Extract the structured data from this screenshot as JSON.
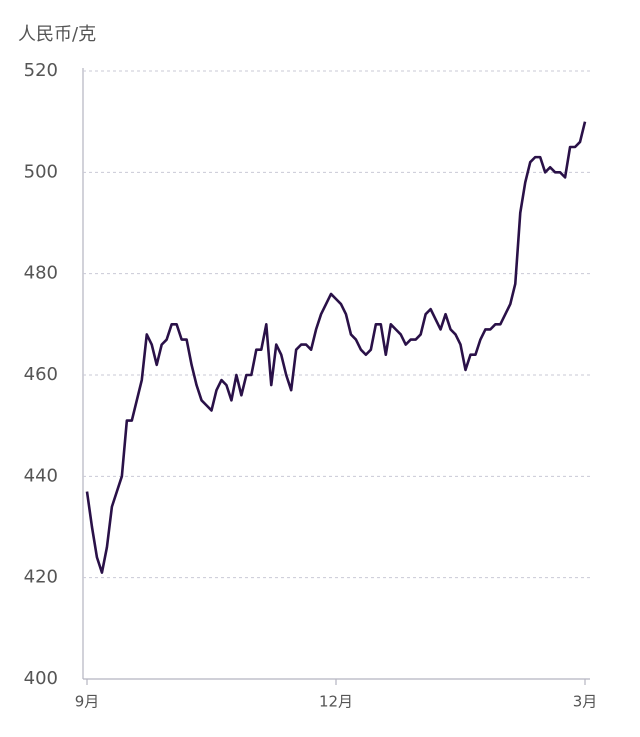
{
  "chart_data": {
    "type": "line",
    "y_label": "人民币/克",
    "categories": [
      "9月",
      null,
      null,
      null,
      null,
      null,
      null,
      null,
      null,
      null,
      null,
      null,
      null,
      null,
      null,
      null,
      null,
      null,
      null,
      null,
      null,
      null,
      null,
      null,
      null,
      null,
      null,
      null,
      null,
      null,
      null,
      null,
      null,
      null,
      null,
      null,
      null,
      null,
      null,
      null,
      null,
      null,
      null,
      null,
      null,
      null,
      null,
      null,
      null,
      null,
      "12月",
      null,
      null,
      null,
      null,
      null,
      null,
      null,
      null,
      null,
      null,
      null,
      null,
      null,
      null,
      null,
      null,
      null,
      null,
      null,
      null,
      null,
      null,
      null,
      null,
      null,
      null,
      null,
      null,
      null,
      null,
      null,
      null,
      null,
      null,
      null,
      null,
      null,
      null,
      null,
      null,
      null,
      null,
      null,
      null,
      null,
      null,
      null,
      null,
      null,
      "3月"
    ],
    "values": [
      437,
      430,
      424,
      421,
      426,
      434,
      437,
      440,
      451,
      451,
      455,
      459,
      468,
      466,
      462,
      466,
      467,
      470,
      470,
      467,
      467,
      462,
      458,
      455,
      454,
      453,
      457,
      459,
      458,
      455,
      460,
      456,
      460,
      460,
      465,
      465,
      470,
      458,
      466,
      464,
      460,
      457,
      465,
      466,
      466,
      465,
      469,
      472,
      474,
      476,
      475,
      474,
      472,
      468,
      467,
      465,
      464,
      465,
      470,
      470,
      464,
      470,
      469,
      468,
      466,
      467,
      467,
      468,
      472,
      473,
      471,
      469,
      472,
      469,
      468,
      466,
      461,
      464,
      464,
      467,
      469,
      469,
      470,
      470,
      472,
      474,
      478,
      492,
      498,
      502,
      503,
      503,
      500,
      501,
      500,
      500,
      499,
      505,
      505,
      506,
      510
    ],
    "color": "#2a1148",
    "ylim": [
      400,
      520
    ],
    "yticks": [
      400,
      420,
      440,
      460,
      480,
      500,
      520
    ],
    "grid": true
  }
}
